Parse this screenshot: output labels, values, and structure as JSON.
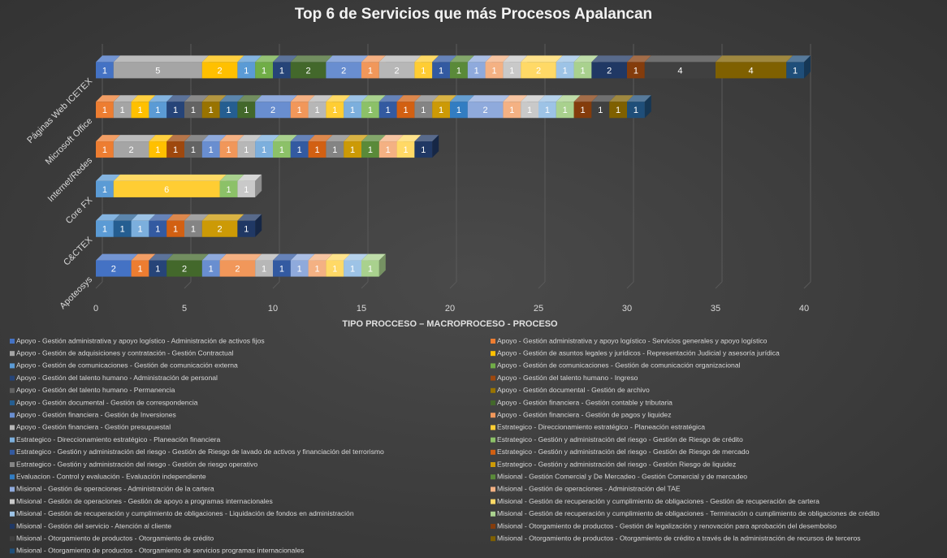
{
  "chart_data": {
    "type": "bar",
    "orientation": "horizontal",
    "stacked": true,
    "title": "Top 6 de Servicios que más Procesos Apalancan",
    "x_label": "TIPO PROCCESO – MACROPROCESO - PROCESO",
    "categories": [
      "Apoteosys",
      "C&CTEX",
      "Core FX",
      "Internet/Redes",
      "Microsoft Office",
      "Páginas Web ICETEX"
    ],
    "xlim": [
      0,
      40
    ],
    "xticks": [
      0,
      5,
      10,
      15,
      20,
      25,
      30,
      35,
      40
    ],
    "legend": "bottom",
    "series": [
      {
        "name": "Apoyo - Gestión administrativa y apoyo logístico - Administración de activos fijos",
        "color": "#4472c4",
        "values": [
          2,
          null,
          null,
          null,
          null,
          1
        ]
      },
      {
        "name": "Apoyo - Gestión administrativa y apoyo logístico - Servicios generales y apoyo logístico",
        "color": "#ed7d31",
        "values": [
          1,
          null,
          null,
          1,
          1,
          null
        ]
      },
      {
        "name": "Apoyo - Gestión de adquisiciones y contratación - Gestión Contractual",
        "color": "#a5a5a5",
        "values": [
          null,
          null,
          null,
          2,
          1,
          5
        ]
      },
      {
        "name": "Apoyo - Gestión de asuntos legales y jurídicos - Representación Judicial y asesoría jurídica",
        "color": "#ffc000",
        "values": [
          null,
          null,
          null,
          1,
          1,
          2
        ]
      },
      {
        "name": "Apoyo - Gestión de comunicaciones - Gestión de comunicación externa",
        "color": "#5b9bd5",
        "values": [
          null,
          1,
          1,
          null,
          1,
          1
        ]
      },
      {
        "name": "Apoyo - Gestión de comunicaciones - Gestión de comunicación organizacional",
        "color": "#70ad47",
        "values": [
          null,
          null,
          null,
          null,
          null,
          1
        ]
      },
      {
        "name": "Apoyo - Gestión del talento humano - Administración de personal",
        "color": "#264478",
        "values": [
          1,
          null,
          null,
          null,
          1,
          1
        ]
      },
      {
        "name": "Apoyo - Gestión del talento humano - Ingreso",
        "color": "#9e480e",
        "values": [
          null,
          null,
          null,
          1,
          null,
          null
        ]
      },
      {
        "name": "Apoyo - Gestión del talento humano - Permanencia",
        "color": "#636363",
        "values": [
          null,
          null,
          null,
          1,
          1,
          null
        ]
      },
      {
        "name": "Apoyo - Gestión documental - Gestión de archivo",
        "color": "#997300",
        "values": [
          null,
          null,
          null,
          null,
          1,
          null
        ]
      },
      {
        "name": "Apoyo - Gestión documental - Gestión de correspondencia",
        "color": "#255e91",
        "values": [
          null,
          1,
          null,
          null,
          1,
          null
        ]
      },
      {
        "name": "Apoyo - Gestión financiera - Gestión contable y tributaria",
        "color": "#43682b",
        "values": [
          2,
          null,
          null,
          null,
          1,
          2
        ]
      },
      {
        "name": "Apoyo - Gestión financiera - Gestión de Inversiones",
        "color": "#698ed0",
        "values": [
          1,
          null,
          null,
          1,
          2,
          2
        ]
      },
      {
        "name": "Apoyo - Gestión financiera - Gestión de pagos y liquidez",
        "color": "#f1975a",
        "values": [
          2,
          null,
          null,
          1,
          1,
          1
        ]
      },
      {
        "name": "Apoyo - Gestión financiera - Gestión presupuestal",
        "color": "#b7b7b7",
        "values": [
          1,
          null,
          null,
          1,
          1,
          2
        ]
      },
      {
        "name": "Estrategico - Direccionamiento estratégico - Planeación estratégica",
        "color": "#ffcd33",
        "values": [
          null,
          null,
          6,
          null,
          1,
          1
        ]
      },
      {
        "name": "Estrategico - Direccionamiento estratégico - Planeación financiera",
        "color": "#7cafdd",
        "values": [
          null,
          1,
          null,
          1,
          1,
          null
        ]
      },
      {
        "name": "Estrategico - Gestión y administración del riesgo - Gestión de Riesgo de crédito",
        "color": "#8cc168",
        "values": [
          null,
          null,
          1,
          1,
          1,
          null
        ]
      },
      {
        "name": "Estrategico - Gestión y administración del riesgo - Gestión de Riesgo de lavado de activos y financiación del terrorismo",
        "color": "#335aa1",
        "values": [
          1,
          1,
          null,
          1,
          1,
          1
        ]
      },
      {
        "name": "Estrategico - Gestión y administración del riesgo - Gestión de Riesgo de mercado",
        "color": "#d26012",
        "values": [
          null,
          1,
          null,
          1,
          1,
          null
        ]
      },
      {
        "name": "Estrategico - Gestión y administración del riesgo - Gestión de riesgo operativo",
        "color": "#848484",
        "values": [
          null,
          1,
          null,
          1,
          1,
          null
        ]
      },
      {
        "name": "Estrategico - Gestión y administración del riesgo - Gestión Riesgo de liquidez",
        "color": "#cc9a06",
        "values": [
          null,
          2,
          null,
          1,
          1,
          null
        ]
      },
      {
        "name": "Evaluacion - Control y evaluación - Evaluación independiente",
        "color": "#327dc2",
        "values": [
          null,
          null,
          null,
          null,
          1,
          null
        ]
      },
      {
        "name": "Misional - Gestión Comercial y De Mercadeo - Gestión Comercial y de mercadeo",
        "color": "#5a8a39",
        "values": [
          null,
          null,
          null,
          1,
          null,
          1
        ]
      },
      {
        "name": "Misional - Gestión de operaciones - Administración de la cartera",
        "color": "#8faadc",
        "values": [
          1,
          null,
          null,
          null,
          2,
          1
        ]
      },
      {
        "name": "Misional - Gestión de operaciones - Administración del TAE",
        "color": "#f4b183",
        "values": [
          1,
          null,
          null,
          1,
          1,
          1
        ]
      },
      {
        "name": "Misional - Gestión de operaciones - Gestión de apoyo a programas internacionales",
        "color": "#c9c9c9",
        "values": [
          null,
          null,
          1,
          null,
          1,
          1
        ]
      },
      {
        "name": "Misional - Gestión de recuperación y cumplimiento de obligaciones - Gestión de recuperación de cartera",
        "color": "#ffd966",
        "values": [
          1,
          null,
          null,
          1,
          null,
          2
        ]
      },
      {
        "name": "Misional - Gestión de recuperación y cumplimiento de obligaciones - Liquidación de fondos en administración",
        "color": "#9dc3e6",
        "values": [
          1,
          null,
          null,
          null,
          1,
          1
        ]
      },
      {
        "name": "Misional - Gestión de recuperación y cumplimiento de obligaciones - Terminación o cumplimiento de obligaciones de crédito",
        "color": "#a9d18e",
        "values": [
          1,
          null,
          null,
          null,
          1,
          1
        ]
      },
      {
        "name": "Misional - Gestión del servicio - Atención al cliente",
        "color": "#203864",
        "values": [
          null,
          1,
          null,
          1,
          null,
          2
        ]
      },
      {
        "name": "Misional - Otorgamiento de productos - Gestión de legalización y renovación para aprobación del desembolso",
        "color": "#843c0c",
        "values": [
          null,
          null,
          null,
          null,
          1,
          1
        ]
      },
      {
        "name": "Misional - Otorgamiento de productos - Otorgamiento de crédito",
        "color": "#404040",
        "values": [
          null,
          null,
          null,
          null,
          1,
          4
        ]
      },
      {
        "name": "Misional - Otorgamiento de productos - Otorgamiento de crédito a través de la administración de recursos de terceros",
        "color": "#7f6000",
        "values": [
          null,
          null,
          null,
          null,
          1,
          4
        ]
      },
      {
        "name": "Misional - Otorgamiento de productos - Otorgamiento de servicios programas internacionales",
        "color": "#1f4e79",
        "values": [
          null,
          null,
          null,
          null,
          1,
          1
        ]
      }
    ]
  }
}
